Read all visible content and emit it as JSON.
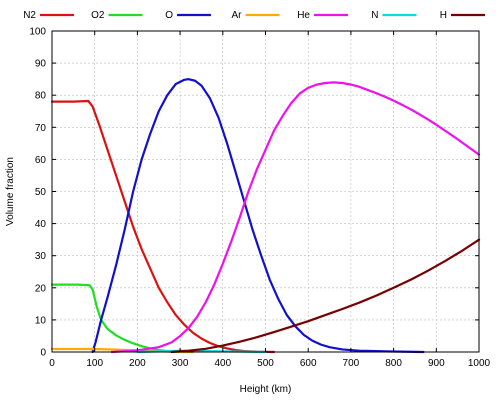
{
  "chart_data": {
    "type": "line",
    "title": "",
    "xlabel": "Height (km)",
    "ylabel": "Volume fraction",
    "xlim": [
      0,
      1000
    ],
    "ylim": [
      0,
      100
    ],
    "xticks": [
      0,
      100,
      200,
      300,
      400,
      500,
      600,
      700,
      800,
      900,
      1000
    ],
    "yticks": [
      0,
      10,
      20,
      30,
      40,
      50,
      60,
      70,
      80,
      90,
      100
    ],
    "grid": true,
    "legend_position": "top",
    "series": [
      {
        "name": "N2",
        "color": "#dd1111",
        "points": [
          [
            0,
            78
          ],
          [
            50,
            78
          ],
          [
            85,
            78.2
          ],
          [
            95,
            76.5
          ],
          [
            110,
            71
          ],
          [
            130,
            63
          ],
          [
            150,
            55
          ],
          [
            170,
            47
          ],
          [
            190,
            39
          ],
          [
            210,
            32
          ],
          [
            230,
            26
          ],
          [
            250,
            20
          ],
          [
            270,
            15.5
          ],
          [
            290,
            11.5
          ],
          [
            310,
            8.5
          ],
          [
            330,
            6
          ],
          [
            350,
            4.2
          ],
          [
            370,
            2.8
          ],
          [
            390,
            1.8
          ],
          [
            410,
            1.1
          ],
          [
            430,
            0.6
          ],
          [
            450,
            0.3
          ],
          [
            480,
            0.1
          ],
          [
            520,
            0
          ]
        ]
      },
      {
        "name": "O2",
        "color": "#22dd22",
        "points": [
          [
            0,
            21
          ],
          [
            60,
            21
          ],
          [
            88,
            20.8
          ],
          [
            95,
            19.5
          ],
          [
            105,
            14
          ],
          [
            115,
            10
          ],
          [
            130,
            7.2
          ],
          [
            150,
            5.2
          ],
          [
            170,
            3.8
          ],
          [
            190,
            2.7
          ],
          [
            210,
            1.8
          ],
          [
            230,
            1.1
          ],
          [
            250,
            0.6
          ],
          [
            270,
            0.3
          ],
          [
            300,
            0.1
          ],
          [
            330,
            0
          ]
        ]
      },
      {
        "name": "O",
        "color": "#1111cc",
        "points": [
          [
            95,
            0
          ],
          [
            102,
            3
          ],
          [
            115,
            10
          ],
          [
            130,
            17
          ],
          [
            150,
            27
          ],
          [
            170,
            38
          ],
          [
            190,
            50
          ],
          [
            210,
            60
          ],
          [
            230,
            68
          ],
          [
            250,
            75
          ],
          [
            270,
            80
          ],
          [
            290,
            83.5
          ],
          [
            310,
            84.8
          ],
          [
            320,
            85
          ],
          [
            335,
            84.5
          ],
          [
            350,
            83
          ],
          [
            370,
            79
          ],
          [
            390,
            73
          ],
          [
            410,
            65
          ],
          [
            430,
            56
          ],
          [
            450,
            47
          ],
          [
            470,
            38
          ],
          [
            490,
            30
          ],
          [
            510,
            22.5
          ],
          [
            530,
            16.5
          ],
          [
            550,
            11.5
          ],
          [
            570,
            8
          ],
          [
            590,
            5.3
          ],
          [
            610,
            3.5
          ],
          [
            630,
            2.3
          ],
          [
            650,
            1.5
          ],
          [
            680,
            0.8
          ],
          [
            720,
            0.4
          ],
          [
            780,
            0.2
          ],
          [
            870,
            0
          ]
        ]
      },
      {
        "name": "Ar",
        "color": "#ffaa00",
        "points": [
          [
            0,
            0.93
          ],
          [
            90,
            0.93
          ],
          [
            120,
            0.85
          ],
          [
            150,
            0.75
          ],
          [
            180,
            0.6
          ],
          [
            210,
            0.45
          ],
          [
            240,
            0.3
          ],
          [
            270,
            0.15
          ],
          [
            300,
            0.05
          ],
          [
            330,
            0
          ]
        ]
      },
      {
        "name": "He",
        "color": "#ee11ee",
        "points": [
          [
            140,
            0
          ],
          [
            200,
            0.5
          ],
          [
            250,
            1.5
          ],
          [
            280,
            3
          ],
          [
            300,
            5
          ],
          [
            320,
            7.5
          ],
          [
            340,
            11
          ],
          [
            360,
            15.5
          ],
          [
            380,
            21
          ],
          [
            400,
            27.5
          ],
          [
            420,
            34.5
          ],
          [
            440,
            42
          ],
          [
            460,
            50
          ],
          [
            480,
            57
          ],
          [
            500,
            63
          ],
          [
            520,
            69
          ],
          [
            540,
            73.5
          ],
          [
            560,
            77.5
          ],
          [
            580,
            80.5
          ],
          [
            600,
            82.3
          ],
          [
            620,
            83.3
          ],
          [
            640,
            83.8
          ],
          [
            660,
            84
          ],
          [
            680,
            83.8
          ],
          [
            700,
            83.3
          ],
          [
            720,
            82.6
          ],
          [
            740,
            81.6
          ],
          [
            760,
            80.6
          ],
          [
            780,
            79.5
          ],
          [
            800,
            78.3
          ],
          [
            820,
            77
          ],
          [
            840,
            75.6
          ],
          [
            860,
            74.1
          ],
          [
            880,
            72.5
          ],
          [
            900,
            70.8
          ],
          [
            920,
            69
          ],
          [
            940,
            67.2
          ],
          [
            960,
            65.3
          ],
          [
            980,
            63.4
          ],
          [
            1000,
            61.5
          ]
        ]
      },
      {
        "name": "N",
        "color": "#00dddd",
        "points": [
          [
            200,
            0
          ],
          [
            300,
            0.4
          ],
          [
            350,
            0.3
          ],
          [
            400,
            0.2
          ],
          [
            450,
            0.1
          ],
          [
            500,
            0
          ]
        ]
      },
      {
        "name": "H",
        "color": "#770000",
        "points": [
          [
            280,
            0
          ],
          [
            320,
            0.4
          ],
          [
            360,
            1
          ],
          [
            400,
            2
          ],
          [
            440,
            3.2
          ],
          [
            480,
            4.6
          ],
          [
            520,
            6.2
          ],
          [
            560,
            7.9
          ],
          [
            600,
            9.6
          ],
          [
            640,
            11.5
          ],
          [
            680,
            13.4
          ],
          [
            720,
            15.4
          ],
          [
            760,
            17.6
          ],
          [
            800,
            20
          ],
          [
            840,
            22.5
          ],
          [
            880,
            25.3
          ],
          [
            920,
            28.3
          ],
          [
            960,
            31.5
          ],
          [
            1000,
            35
          ]
        ]
      }
    ]
  }
}
